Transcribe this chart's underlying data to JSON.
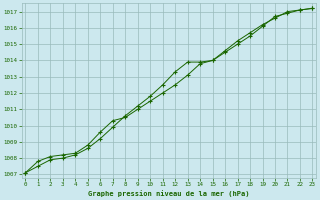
{
  "title": "Graphe pression niveau de la mer (hPa)",
  "background_color": "#cce8ee",
  "plot_bg_color": "#cce8ee",
  "grid_color": "#99bbbb",
  "line_color": "#1a6600",
  "marker_color": "#1a6600",
  "x_ticks": [
    0,
    1,
    2,
    3,
    4,
    5,
    6,
    7,
    8,
    9,
    10,
    11,
    12,
    13,
    14,
    15,
    16,
    17,
    18,
    19,
    20,
    21,
    22,
    23
  ],
  "xlim": [
    -0.3,
    23.3
  ],
  "ylim": [
    1006.8,
    1017.5
  ],
  "y_ticks": [
    1007,
    1008,
    1009,
    1010,
    1011,
    1012,
    1013,
    1014,
    1015,
    1016,
    1017
  ],
  "series1_x": [
    0,
    1,
    2,
    3,
    4,
    5,
    6,
    7,
    8,
    9,
    10,
    11,
    12,
    13,
    14,
    15,
    16,
    17,
    18,
    19,
    20,
    21,
    22,
    23
  ],
  "series1_y": [
    1007.1,
    1007.5,
    1007.9,
    1008.0,
    1008.2,
    1008.6,
    1009.2,
    1009.9,
    1010.6,
    1011.2,
    1011.8,
    1012.5,
    1013.3,
    1013.9,
    1013.9,
    1014.0,
    1014.5,
    1015.0,
    1015.5,
    1016.1,
    1016.7,
    1016.9,
    1017.1,
    1017.2
  ],
  "series2_x": [
    0,
    1,
    2,
    3,
    4,
    5,
    6,
    7,
    8,
    9,
    10,
    11,
    12,
    13,
    14,
    15,
    16,
    17,
    18,
    19,
    20,
    21,
    22,
    23
  ],
  "series2_y": [
    1007.1,
    1007.8,
    1008.1,
    1008.2,
    1008.3,
    1008.8,
    1009.6,
    1010.3,
    1010.5,
    1011.0,
    1011.5,
    1012.0,
    1012.5,
    1013.1,
    1013.8,
    1014.0,
    1014.6,
    1015.2,
    1015.7,
    1016.2,
    1016.6,
    1017.0,
    1017.1,
    1017.2
  ]
}
